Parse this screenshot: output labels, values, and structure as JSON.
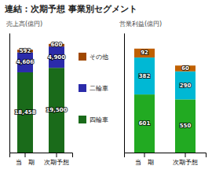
{
  "chart_data": [
    {
      "type": "bar",
      "title": "連結：次期予想 事業別セグメント",
      "subtitle": "売上高(億円)",
      "categories": [
        "当　期",
        "次期予想"
      ],
      "series": [
        {
          "name": "四輪車",
          "color": "#1a6b1a",
          "values": [
            18458,
            19500
          ],
          "value_labels": [
            "18,458",
            "19,500"
          ]
        },
        {
          "name": "二輪車",
          "color": "#2b2baa",
          "values": [
            4606,
            4900
          ],
          "value_labels": [
            "4,606",
            "4,900"
          ]
        },
        {
          "name": "その他",
          "color": "#a04800",
          "values": [
            592,
            600
          ]
        }
      ],
      "ylim": [
        0,
        27500
      ],
      "stacked": true,
      "data_labels": true,
      "tick_labels": "x",
      "legend": "right",
      "grid": false
    },
    {
      "type": "bar",
      "subtitle": "営業利益(億円)",
      "categories": [
        "当　期",
        "次期予想"
      ],
      "series": [
        {
          "name": "四輪車",
          "color": "#22aa22",
          "values": [
            601,
            550
          ]
        },
        {
          "name": "二輪車",
          "color": "#00b8d4",
          "values": [
            382,
            290
          ]
        },
        {
          "name": "その他",
          "color": "#c06000",
          "values": [
            92,
            60
          ]
        }
      ],
      "ylim": [
        0,
        1236.25
      ],
      "stacked": true,
      "data_labels": true,
      "tick_labels": "x",
      "grid": false
    }
  ]
}
